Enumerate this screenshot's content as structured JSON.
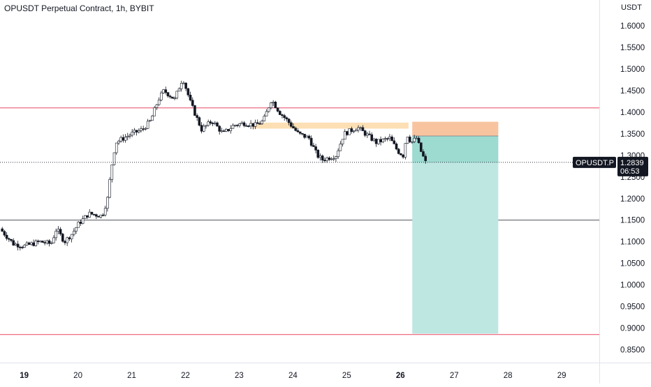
{
  "header": {
    "title": "OPUSDT Perpetual Contract, 1h, BYBIT",
    "currency": "USDT"
  },
  "chart_data": {
    "type": "candlestick",
    "symbol": "OPUSDT Perpetual Contract",
    "interval": "1h",
    "exchange": "BYBIT",
    "y_axis": {
      "range": [
        0.82,
        1.66
      ],
      "ticks": [
        "1.6000",
        "1.5500",
        "1.5000",
        "1.4500",
        "1.4000",
        "1.3500",
        "1.3000",
        "1.2500",
        "1.2000",
        "1.1500",
        "1.1000",
        "1.0500",
        "1.0000",
        "0.9500",
        "0.9000",
        "0.8500"
      ]
    },
    "x_axis": {
      "range_days": [
        18.55,
        29.7
      ],
      "ticks": [
        {
          "label": "19",
          "day": 19,
          "bold": true
        },
        {
          "label": "20",
          "day": 20
        },
        {
          "label": "21",
          "day": 21
        },
        {
          "label": "22",
          "day": 22
        },
        {
          "label": "23",
          "day": 23
        },
        {
          "label": "24",
          "day": 24
        },
        {
          "label": "25",
          "day": 25
        },
        {
          "label": "26",
          "day": 26,
          "bold": true
        },
        {
          "label": "27",
          "day": 27
        },
        {
          "label": "28",
          "day": 28
        },
        {
          "label": "29",
          "day": 29
        }
      ]
    },
    "price_path": [
      [
        18.55,
        1.13
      ],
      [
        18.8,
        1.095
      ],
      [
        19.0,
        1.09
      ],
      [
        19.3,
        1.1
      ],
      [
        19.5,
        1.095
      ],
      [
        19.6,
        1.13
      ],
      [
        19.75,
        1.1
      ],
      [
        19.9,
        1.12
      ],
      [
        20.0,
        1.14
      ],
      [
        20.2,
        1.165
      ],
      [
        20.45,
        1.16
      ],
      [
        20.55,
        1.2
      ],
      [
        20.62,
        1.27
      ],
      [
        20.7,
        1.33
      ],
      [
        20.85,
        1.34
      ],
      [
        21.0,
        1.35
      ],
      [
        21.2,
        1.36
      ],
      [
        21.35,
        1.38
      ],
      [
        21.5,
        1.43
      ],
      [
        21.6,
        1.45
      ],
      [
        21.8,
        1.43
      ],
      [
        21.95,
        1.48
      ],
      [
        22.1,
        1.42
      ],
      [
        22.2,
        1.39
      ],
      [
        22.3,
        1.36
      ],
      [
        22.5,
        1.38
      ],
      [
        22.7,
        1.35
      ],
      [
        22.9,
        1.37
      ],
      [
        23.1,
        1.375
      ],
      [
        23.3,
        1.37
      ],
      [
        23.45,
        1.38
      ],
      [
        23.6,
        1.43
      ],
      [
        23.75,
        1.4
      ],
      [
        23.9,
        1.38
      ],
      [
        24.1,
        1.35
      ],
      [
        24.3,
        1.34
      ],
      [
        24.45,
        1.3
      ],
      [
        24.55,
        1.29
      ],
      [
        24.8,
        1.3
      ],
      [
        24.95,
        1.35
      ],
      [
        25.2,
        1.365
      ],
      [
        25.4,
        1.345
      ],
      [
        25.55,
        1.33
      ],
      [
        25.8,
        1.34
      ],
      [
        25.95,
        1.31
      ],
      [
        26.05,
        1.3
      ],
      [
        26.12,
        1.35
      ],
      [
        26.2,
        1.33
      ],
      [
        26.3,
        1.34
      ],
      [
        26.38,
        1.31
      ],
      [
        26.48,
        1.28
      ]
    ],
    "sr_lines": [
      1.41,
      0.885
    ],
    "level_line": 1.15,
    "supply_zone": {
      "from": 23.25,
      "to": 26.15,
      "low": 1.362,
      "high": 1.376
    },
    "position": {
      "start": 26.22,
      "end": 27.82,
      "stop": 1.378,
      "entry": 1.345,
      "target": 0.887,
      "stop_color": "#f8c4a0",
      "target_color": "#bfe7e2"
    },
    "current_price": 1.2839,
    "price_label": {
      "symbol": "OPUSDT.P",
      "price": "1.2839",
      "countdown": "06:53"
    }
  },
  "colors": {
    "sr_line": "#e94560",
    "level_line": "#131722",
    "zone": "#fcd9a8",
    "axis_text": "#131722",
    "label_bg": "#131722"
  }
}
